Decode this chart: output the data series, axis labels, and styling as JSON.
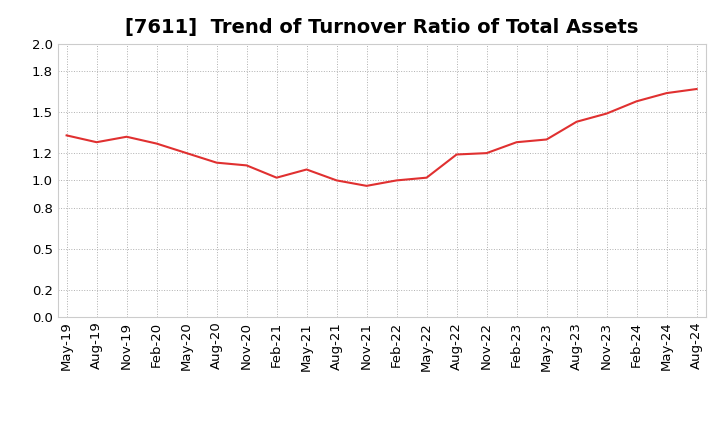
{
  "title": "[7611]  Trend of Turnover Ratio of Total Assets",
  "x_labels": [
    "May-19",
    "Aug-19",
    "Nov-19",
    "Feb-20",
    "May-20",
    "Aug-20",
    "Nov-20",
    "Feb-21",
    "May-21",
    "Aug-21",
    "Nov-21",
    "Feb-22",
    "May-22",
    "Aug-22",
    "Nov-22",
    "Feb-23",
    "May-23",
    "Aug-23",
    "Nov-23",
    "Feb-24",
    "May-24",
    "Aug-24"
  ],
  "y_values": [
    1.33,
    1.28,
    1.32,
    1.27,
    1.2,
    1.13,
    1.11,
    1.02,
    1.08,
    1.0,
    0.96,
    1.0,
    1.02,
    1.19,
    1.2,
    1.28,
    1.3,
    1.43,
    1.49,
    1.58,
    1.64,
    1.67
  ],
  "line_color": "#e03030",
  "ylim": [
    0.0,
    2.0
  ],
  "ytick_positions": [
    0.0,
    0.2,
    0.5,
    0.8,
    1.0,
    1.2,
    1.5,
    1.8,
    2.0
  ],
  "ytick_labels": [
    "0.0",
    "0.2",
    "0.5",
    "0.8",
    "1.0",
    "1.2",
    "1.5",
    "1.8",
    "2.0"
  ],
  "bg_color": "#ffffff",
  "grid_color": "#b0b0b0",
  "title_fontsize": 14,
  "tick_fontsize": 9.5
}
